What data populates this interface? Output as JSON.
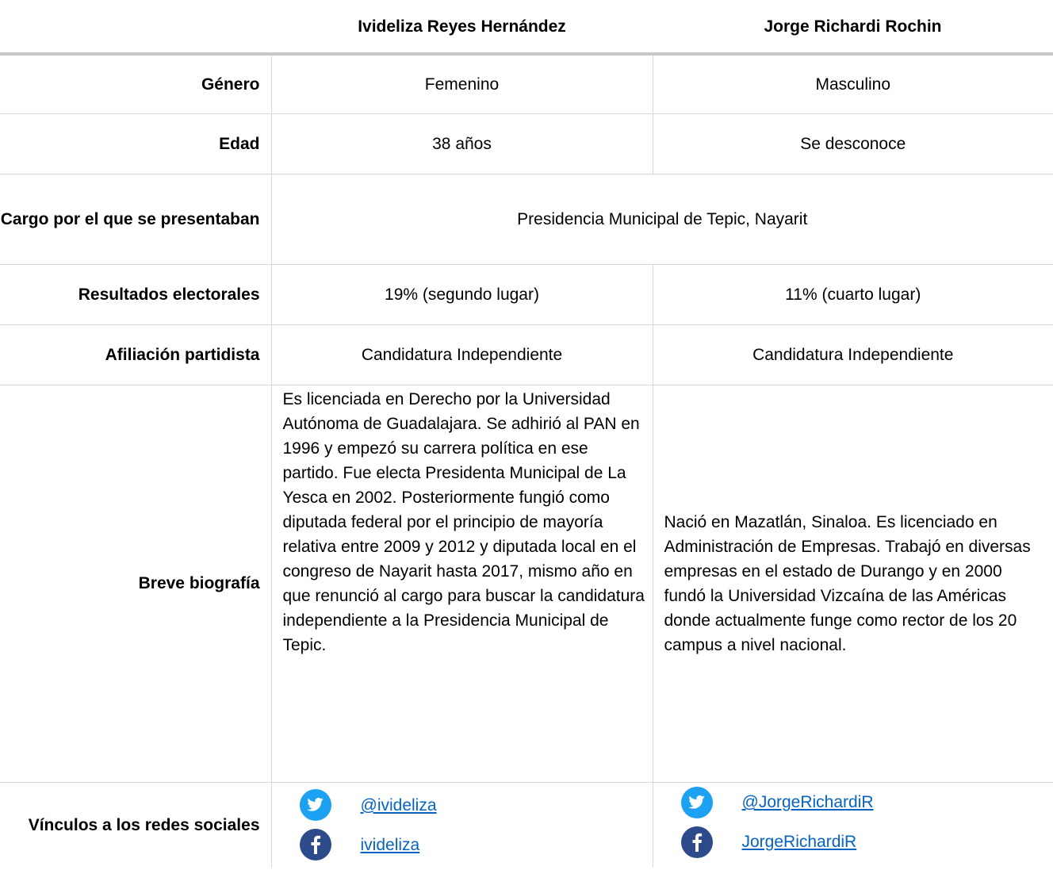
{
  "header": {
    "columns": [
      "Ivideliza Reyes Hernández",
      "Jorge Richardi Rochin"
    ]
  },
  "table": {
    "rows": [
      {
        "label": "Género",
        "cells": [
          "Femenino",
          "Masculino"
        ]
      },
      {
        "label": "Edad",
        "cells": [
          "38 años",
          "Se desconoce"
        ]
      },
      {
        "label": "Cargo por el que se presentaban",
        "cells": [
          "Presidencia Municipal de Tepic, Nayarit"
        ]
      },
      {
        "label": "Resultados electorales",
        "cells": [
          "19% (segundo lugar)",
          "11% (cuarto lugar)"
        ]
      },
      {
        "label": "Afiliación partidista",
        "cells": [
          "Candidatura Independiente",
          "Candidatura Independiente"
        ]
      },
      {
        "label": "Breve biografía",
        "cells": [
          "Es licenciada en Derecho por la Universidad Autónoma de Guadalajara. Se adhirió al PAN en 1996 y empezó su carrera política en ese partido. Fue electa Presidenta Municipal de La Yesca en 2002. Posteriormente fungió como diputada federal por el principio de mayoría relativa entre 2009 y 2012 y diputada local en el congreso de Nayarit hasta 2017, mismo año en que renunció al cargo para buscar la candidatura independiente a la Presidencia Municipal de Tepic.",
          "Nació en Mazatlán, Sinaloa. Es licenciado en Administración de Empresas. Trabajó en diversas empresas en el estado de Durango y en 2000 fundó la Universidad Vizcaína de las Américas donde actualmente funge como rector de los 20 campus a nivel nacional."
        ]
      }
    ]
  },
  "links": {
    "label": "Vínculos a los redes sociales",
    "cells": [
      {
        "twitter": "@ivideliza",
        "facebook": "ivideliza"
      },
      {
        "twitter": "@JorgeRichardiR",
        "facebook": "JorgeRichardiR"
      }
    ]
  }
}
